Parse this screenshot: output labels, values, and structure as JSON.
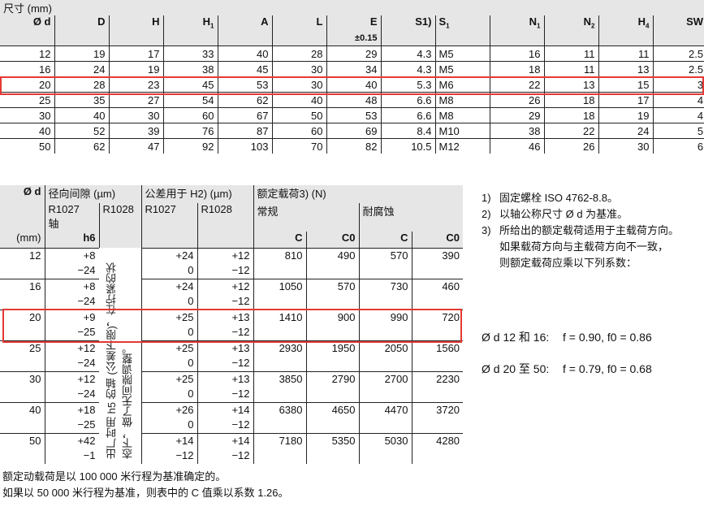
{
  "table1": {
    "caption": "尺寸 (mm)",
    "headers": [
      "Ø d",
      "D",
      "H",
      "H1",
      "A",
      "L",
      "E",
      "S1)",
      "S1",
      "N1",
      "N2",
      "H4",
      "SW"
    ],
    "e_tolerance": "±0.15",
    "rows": [
      [
        "12",
        "19",
        "17",
        "33",
        "40",
        "28",
        "29",
        "4.3",
        "M5",
        "16",
        "11",
        "11",
        "2.5"
      ],
      [
        "16",
        "24",
        "19",
        "38",
        "45",
        "30",
        "34",
        "4.3",
        "M5",
        "18",
        "11",
        "13",
        "2.5"
      ],
      [
        "20",
        "28",
        "23",
        "45",
        "53",
        "30",
        "40",
        "5.3",
        "M6",
        "22",
        "13",
        "15",
        "3"
      ],
      [
        "25",
        "35",
        "27",
        "54",
        "62",
        "40",
        "48",
        "6.6",
        "M8",
        "26",
        "18",
        "17",
        "4"
      ],
      [
        "30",
        "40",
        "30",
        "60",
        "67",
        "50",
        "53",
        "6.6",
        "M8",
        "29",
        "18",
        "19",
        "4"
      ],
      [
        "40",
        "52",
        "39",
        "76",
        "87",
        "60",
        "69",
        "8.4",
        "M10",
        "38",
        "22",
        "24",
        "5"
      ],
      [
        "50",
        "62",
        "47",
        "92",
        "103",
        "70",
        "82",
        "10.5",
        "M12",
        "46",
        "26",
        "30",
        "6"
      ]
    ],
    "highlight_row": "20"
  },
  "table2": {
    "h_d": "Ø d",
    "h_unit": "(mm)",
    "h_clearance": "径向间隙 (µm)",
    "h_tolerance": "公差用于 H2) (µm)",
    "h_load": "额定载荷3) (N)",
    "r1027": "R1027",
    "r1028": "R1028",
    "shaft": "轴",
    "h6": "h6",
    "normal": "常规",
    "corrosion": "耐腐蚀",
    "c": "C",
    "c0": "C0",
    "vertical_note": [
      "出厂时用 h5 的轴 (公差下限)，在拧紧的状",
      "态下，做了无间隙调整。"
    ],
    "rows": [
      {
        "d": "12",
        "cl": [
          "+8",
          "−24"
        ],
        "t27": [
          "+24",
          "0"
        ],
        "t28": [
          "+12",
          "−12"
        ],
        "C": "810",
        "C0": "490",
        "Cc": "570",
        "Cc0": "390"
      },
      {
        "d": "16",
        "cl": [
          "+8",
          "−24"
        ],
        "t27": [
          "+24",
          "0"
        ],
        "t28": [
          "+12",
          "−12"
        ],
        "C": "1050",
        "C0": "570",
        "Cc": "730",
        "Cc0": "460"
      },
      {
        "d": "20",
        "cl": [
          "+9",
          "−25"
        ],
        "t27": [
          "+25",
          "0"
        ],
        "t28": [
          "+13",
          "−12"
        ],
        "C": "1410",
        "C0": "900",
        "Cc": "990",
        "Cc0": "720"
      },
      {
        "d": "25",
        "cl": [
          "+12",
          "−24"
        ],
        "t27": [
          "+25",
          "0"
        ],
        "t28": [
          "+13",
          "−12"
        ],
        "C": "2930",
        "C0": "1950",
        "Cc": "2050",
        "Cc0": "1560"
      },
      {
        "d": "30",
        "cl": [
          "+12",
          "−24"
        ],
        "t27": [
          "+25",
          "0"
        ],
        "t28": [
          "+13",
          "−12"
        ],
        "C": "3850",
        "C0": "2790",
        "Cc": "2700",
        "Cc0": "2230"
      },
      {
        "d": "40",
        "cl": [
          "+18",
          "−25"
        ],
        "t27": [
          "+26",
          "0"
        ],
        "t28": [
          "+14",
          "−12"
        ],
        "C": "6380",
        "C0": "4650",
        "Cc": "4470",
        "Cc0": "3720"
      },
      {
        "d": "50",
        "cl": [
          "+42",
          "−1"
        ],
        "t27": [
          "+14",
          "−12"
        ],
        "t28": [
          "+14",
          "−12"
        ],
        "C": "7180",
        "C0": "5350",
        "Cc": "5030",
        "Cc0": "4280"
      }
    ]
  },
  "notes": {
    "items": [
      [
        "1)",
        "固定螺栓 ISO 4762-8.8。"
      ],
      [
        "2)",
        "以轴公称尺寸 Ø d 为基准。"
      ],
      [
        "3)",
        "所给出的额定载荷适用于主载荷方向。"
      ],
      [
        "",
        "如果载荷方向与主载荷方向不一致，"
      ],
      [
        "",
        "则额定载荷应乘以下列系数："
      ]
    ],
    "factor1_label": "Ø d 12 和 16:",
    "factor1": "f = 0.90, f0 = 0.86",
    "factor2_label": "Ø d 20 至 50:",
    "factor2": "f = 0.79, f0 = 0.68"
  },
  "footer": [
    "额定动载荷是以 100 000 米行程为基准确定的。",
    "如果以 50 000 米行程为基准，则表中的 C 值乘以系数 1.26。"
  ],
  "colors": {
    "highlight": "#e53935",
    "header_bg": "#e6e6e6"
  }
}
